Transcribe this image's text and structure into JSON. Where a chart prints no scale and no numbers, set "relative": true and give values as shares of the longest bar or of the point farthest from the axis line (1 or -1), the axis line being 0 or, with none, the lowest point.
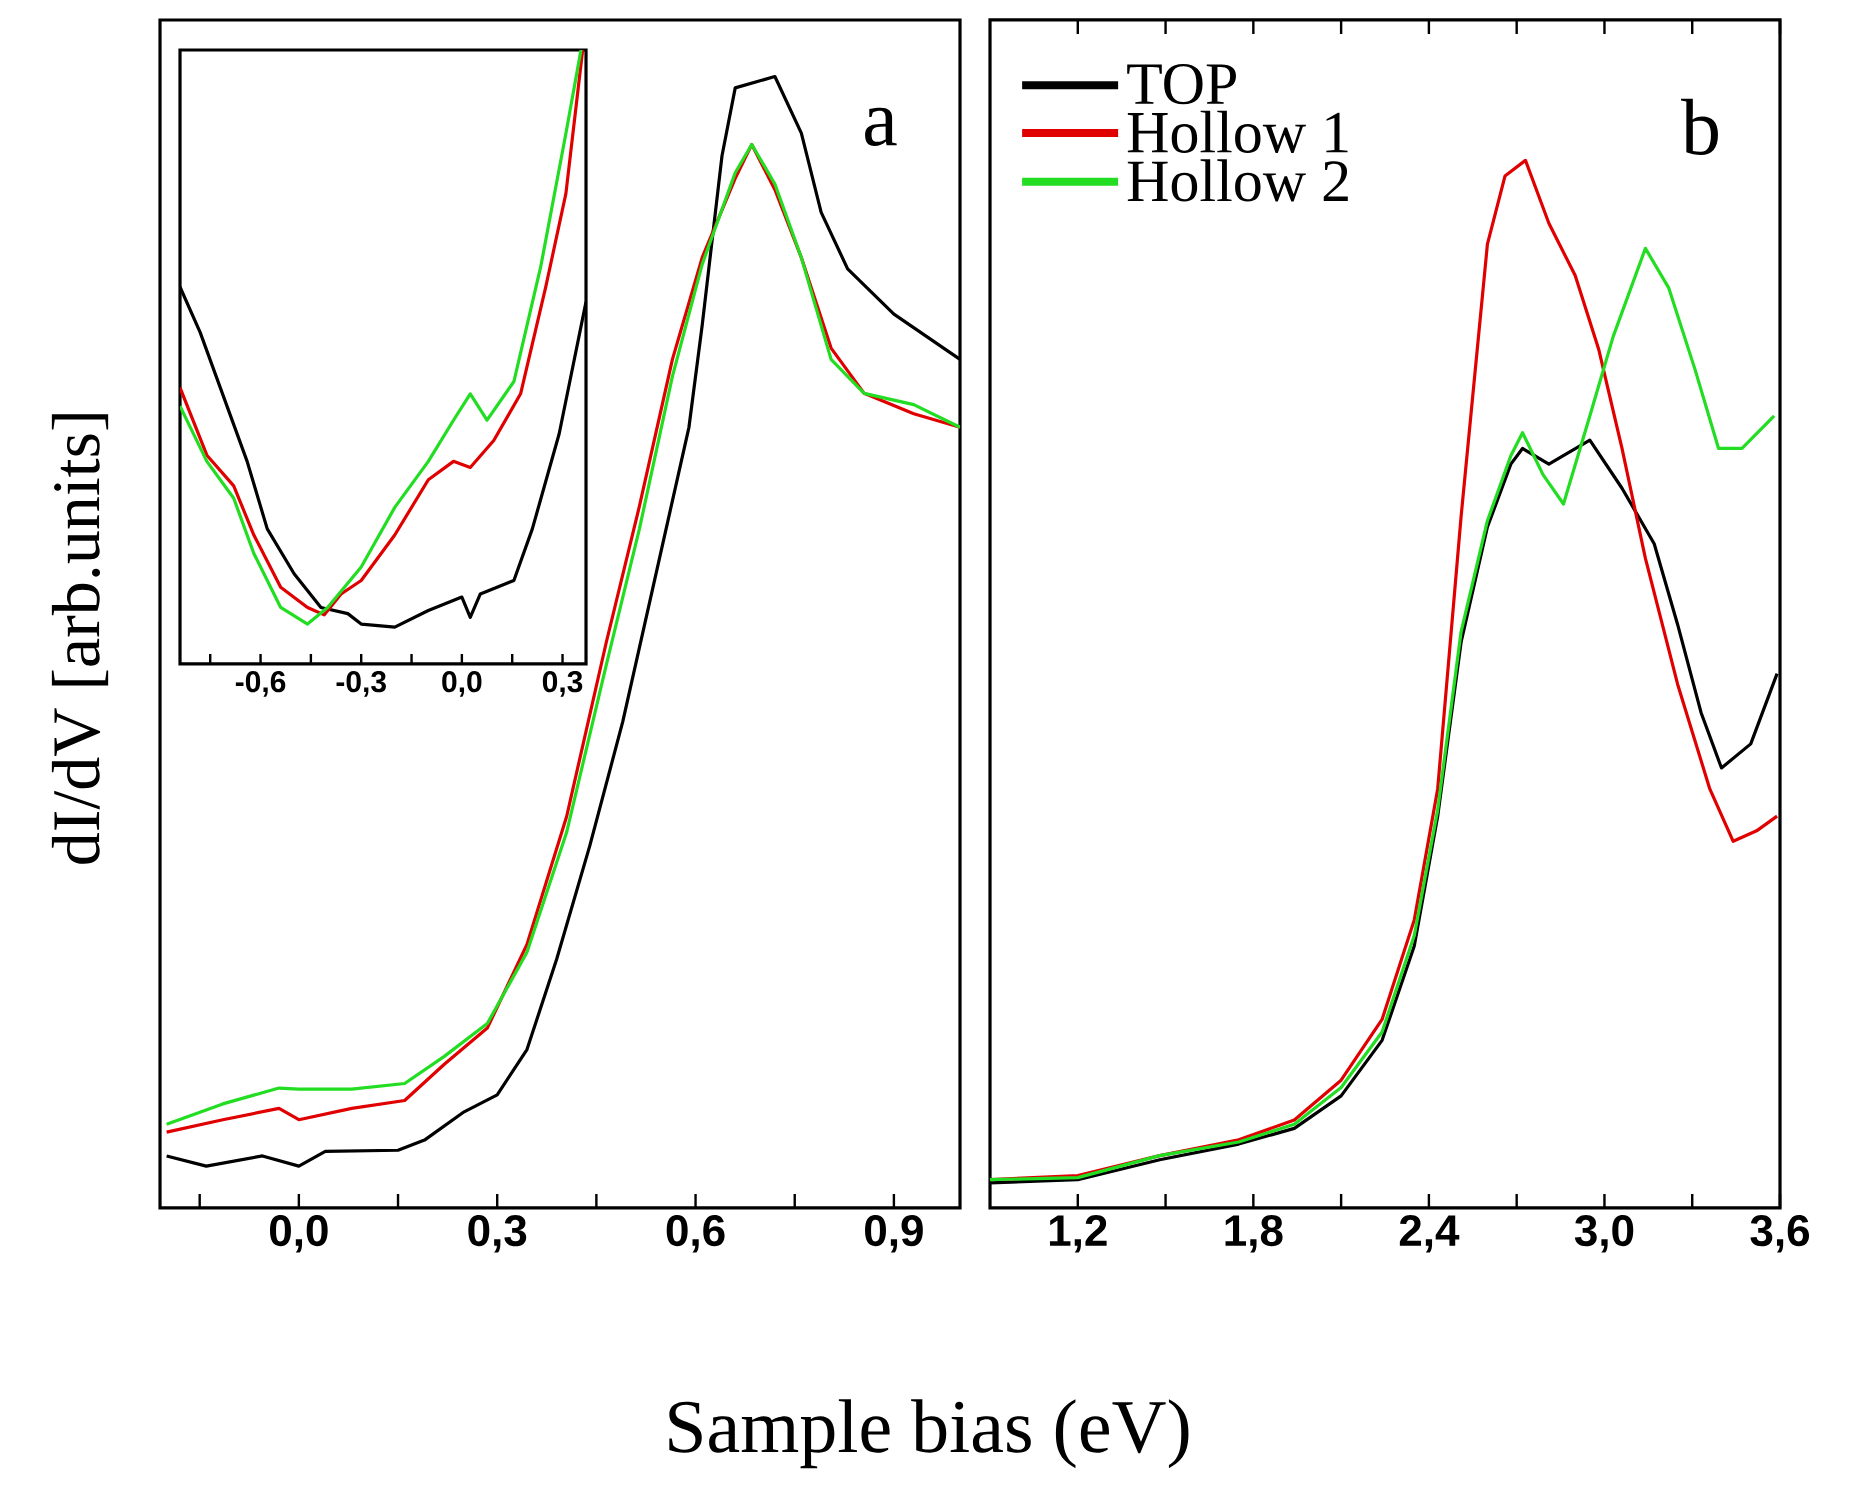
{
  "chart_data": [
    {
      "type": "line",
      "relative": true,
      "ylabel": "dI/dV [arb.units]",
      "xlabel": "Sample bias (eV)",
      "annotations": [
        "a"
      ],
      "xlim": [
        -0.21,
        1.0
      ],
      "xticks": [
        {
          "value": -0.15,
          "label": null
        },
        {
          "value": 0.0,
          "label": "0,0"
        },
        {
          "value": 0.15,
          "label": null
        },
        {
          "value": 0.3,
          "label": "0,3"
        },
        {
          "value": 0.45,
          "label": null
        },
        {
          "value": 0.6,
          "label": "0,6"
        },
        {
          "value": 0.75,
          "label": null
        },
        {
          "value": 0.9,
          "label": "0,9"
        }
      ],
      "tick_labels": "x",
      "legend": false,
      "series": [
        {
          "color": "#000000",
          "x": [
            -0.2,
            -0.14,
            -0.055,
            0.0,
            0.04,
            0.15,
            0.19,
            0.25,
            0.3,
            0.345,
            0.39,
            0.44,
            0.49,
            0.54,
            0.59,
            0.61,
            0.64,
            0.66,
            0.72,
            0.76,
            0.79,
            0.83,
            0.9,
            1.0
          ],
          "values": [
            0.046,
            0.037,
            0.046,
            0.037,
            0.05,
            0.051,
            0.06,
            0.085,
            0.1,
            0.14,
            0.22,
            0.32,
            0.43,
            0.56,
            0.69,
            0.78,
            0.93,
            0.99,
            1.0,
            0.95,
            0.88,
            0.83,
            0.79,
            0.75
          ]
        },
        {
          "color": "#e00000",
          "x": [
            -0.2,
            -0.115,
            -0.03,
            0.0,
            0.08,
            0.16,
            0.22,
            0.285,
            0.345,
            0.405,
            0.465,
            0.515,
            0.565,
            0.61,
            0.66,
            0.685,
            0.72,
            0.76,
            0.805,
            0.855,
            0.93,
            1.0
          ],
          "values": [
            0.067,
            0.078,
            0.088,
            0.078,
            0.088,
            0.095,
            0.127,
            0.159,
            0.233,
            0.346,
            0.5,
            0.62,
            0.75,
            0.84,
            0.91,
            0.94,
            0.9,
            0.84,
            0.76,
            0.72,
            0.702,
            0.69
          ]
        },
        {
          "color": "#22dd22",
          "x": [
            -0.2,
            -0.115,
            -0.03,
            0.0,
            0.08,
            0.16,
            0.22,
            0.285,
            0.345,
            0.405,
            0.465,
            0.515,
            0.565,
            0.61,
            0.66,
            0.685,
            0.72,
            0.76,
            0.805,
            0.855,
            0.93,
            1.0
          ],
          "values": [
            0.074,
            0.092,
            0.106,
            0.105,
            0.105,
            0.11,
            0.134,
            0.163,
            0.226,
            0.332,
            0.48,
            0.6,
            0.735,
            0.834,
            0.915,
            0.94,
            0.905,
            0.84,
            0.75,
            0.72,
            0.71,
            0.69
          ]
        }
      ]
    },
    {
      "type": "line",
      "relative": true,
      "xlim": [
        -0.84,
        0.37
      ],
      "xticks": [
        {
          "value": -0.75,
          "label": null
        },
        {
          "value": -0.6,
          "label": "-0,6"
        },
        {
          "value": -0.45,
          "label": null
        },
        {
          "value": -0.3,
          "label": "-0,3"
        },
        {
          "value": -0.15,
          "label": null
        },
        {
          "value": 0.0,
          "label": "0,0"
        },
        {
          "value": 0.15,
          "label": null
        },
        {
          "value": 0.3,
          "label": "0,3"
        }
      ],
      "tick_labels": "x",
      "legend": false,
      "series": [
        {
          "color": "#000000",
          "x": [
            -0.84,
            -0.78,
            -0.7,
            -0.64,
            -0.58,
            -0.5,
            -0.42,
            -0.34,
            -0.3,
            -0.2,
            -0.1,
            0.0,
            0.025,
            0.055,
            0.155,
            0.21,
            0.29,
            0.37
          ],
          "values": [
            0.614,
            0.54,
            0.42,
            0.33,
            0.22,
            0.147,
            0.092,
            0.082,
            0.065,
            0.06,
            0.087,
            0.109,
            0.076,
            0.114,
            0.136,
            0.22,
            0.375,
            0.59
          ]
        },
        {
          "color": "#e00000",
          "x": [
            -0.84,
            -0.76,
            -0.68,
            -0.62,
            -0.54,
            -0.46,
            -0.41,
            -0.36,
            -0.3,
            -0.2,
            -0.1,
            -0.025,
            0.025,
            0.095,
            0.175,
            0.25,
            0.31,
            0.36
          ],
          "values": [
            0.45,
            0.34,
            0.29,
            0.21,
            0.125,
            0.092,
            0.08,
            0.114,
            0.136,
            0.21,
            0.3,
            0.33,
            0.32,
            0.364,
            0.44,
            0.614,
            0.766,
            1.0
          ]
        },
        {
          "color": "#22dd22",
          "x": [
            -0.84,
            -0.76,
            -0.68,
            -0.62,
            -0.54,
            -0.46,
            -0.4,
            -0.3,
            -0.2,
            -0.1,
            -0.025,
            0.025,
            0.075,
            0.155,
            0.235,
            0.31,
            0.355
          ],
          "values": [
            0.42,
            0.33,
            0.27,
            0.18,
            0.092,
            0.065,
            0.092,
            0.158,
            0.255,
            0.33,
            0.397,
            0.44,
            0.397,
            0.46,
            0.647,
            0.864,
            1.0
          ]
        }
      ]
    },
    {
      "type": "line",
      "relative": true,
      "annotations": [
        "b"
      ],
      "xlim": [
        0.9,
        3.6
      ],
      "xticks": [
        {
          "value": 1.2,
          "label": "1,2"
        },
        {
          "value": 1.5,
          "label": null
        },
        {
          "value": 1.8,
          "label": "1,8"
        },
        {
          "value": 2.1,
          "label": null
        },
        {
          "value": 2.4,
          "label": "2,4"
        },
        {
          "value": 2.7,
          "label": null
        },
        {
          "value": 3.0,
          "label": "3,0"
        },
        {
          "value": 3.3,
          "label": null
        },
        {
          "value": 3.6,
          "label": "3,6"
        }
      ],
      "tick_labels": "x",
      "legend": "top left",
      "series": [
        {
          "name": "TOP",
          "color": "#000000",
          "x": [
            0.9,
            1.2,
            1.48,
            1.75,
            1.94,
            2.1,
            2.24,
            2.35,
            2.43,
            2.51,
            2.6,
            2.68,
            2.72,
            2.81,
            2.95,
            3.06,
            3.17,
            3.25,
            3.33,
            3.4,
            3.5,
            3.59
          ],
          "values": [
            0.024,
            0.027,
            0.046,
            0.061,
            0.076,
            0.107,
            0.16,
            0.25,
            0.374,
            0.54,
            0.65,
            0.71,
            0.725,
            0.71,
            0.733,
            0.687,
            0.634,
            0.557,
            0.473,
            0.42,
            0.443,
            0.51
          ]
        },
        {
          "name": "Hollow 1",
          "color": "#e00000",
          "x": [
            0.9,
            1.2,
            1.48,
            1.75,
            1.94,
            2.1,
            2.24,
            2.35,
            2.43,
            2.51,
            2.6,
            2.66,
            2.73,
            2.81,
            2.9,
            2.98,
            3.06,
            3.14,
            3.25,
            3.36,
            3.44,
            3.52,
            3.59
          ],
          "values": [
            0.027,
            0.031,
            0.05,
            0.065,
            0.084,
            0.122,
            0.18,
            0.275,
            0.4,
            0.66,
            0.92,
            0.985,
            1.0,
            0.94,
            0.89,
            0.82,
            0.725,
            0.62,
            0.5,
            0.4,
            0.35,
            0.36,
            0.374
          ]
        },
        {
          "name": "Hollow 2",
          "color": "#22dd22",
          "x": [
            0.9,
            1.2,
            1.48,
            1.75,
            1.94,
            2.1,
            2.24,
            2.35,
            2.43,
            2.51,
            2.6,
            2.68,
            2.72,
            2.79,
            2.86,
            2.95,
            3.03,
            3.14,
            3.22,
            3.31,
            3.39,
            3.47,
            3.58
          ],
          "values": [
            0.027,
            0.029,
            0.05,
            0.063,
            0.08,
            0.115,
            0.168,
            0.26,
            0.38,
            0.55,
            0.656,
            0.718,
            0.74,
            0.7,
            0.672,
            0.756,
            0.832,
            0.916,
            0.878,
            0.8,
            0.725,
            0.725,
            0.756
          ]
        }
      ]
    }
  ]
}
